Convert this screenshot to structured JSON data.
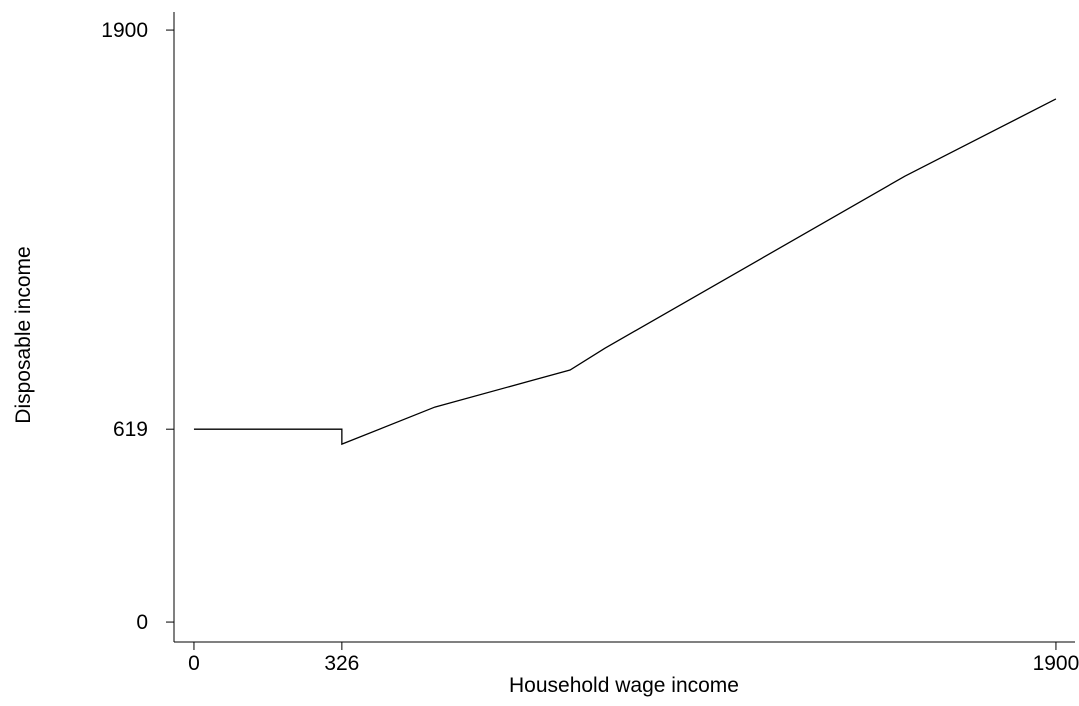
{
  "chart_data": {
    "type": "line",
    "x_label": "Household wage income",
    "y_label": "Disposable income",
    "x": [
      0,
      326,
      326,
      531,
      829,
      906,
      1567,
      1900
    ],
    "series": [
      {
        "color": "#000000",
        "values": [
          619,
          619,
          571,
          690,
          809,
          879,
          1431,
          1679
        ]
      }
    ],
    "xlim": [
      -44,
      1942
    ],
    "ylim": [
      -64,
      1958
    ],
    "xticks": [
      0,
      326,
      1900
    ],
    "yticks": [
      0,
      619,
      1900
    ]
  }
}
